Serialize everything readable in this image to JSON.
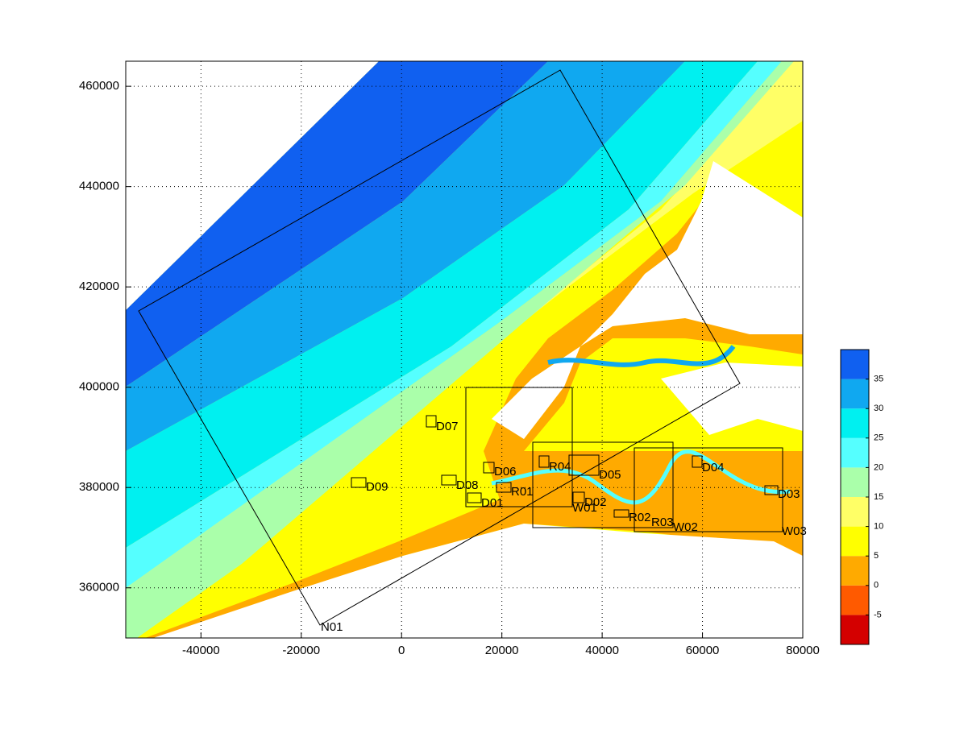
{
  "axes": {
    "xlim": [
      -55000,
      80000
    ],
    "ylim": [
      350000,
      465000
    ],
    "xticks": [
      -40000,
      -20000,
      0,
      20000,
      40000,
      60000,
      80000
    ],
    "yticks": [
      360000,
      380000,
      400000,
      420000,
      440000,
      460000
    ],
    "grid": true
  },
  "colorbar": {
    "lim": [
      -10,
      40
    ],
    "ticks": [
      -5,
      0,
      5,
      10,
      15,
      20,
      25,
      30,
      35
    ],
    "edges": [
      -10,
      -5,
      0,
      5,
      10,
      15,
      20,
      25,
      30,
      35,
      40
    ],
    "colors": [
      "#d40000",
      "#ff5a00",
      "#ffaa00",
      "#ffff00",
      "#ffff66",
      "#aaffaa",
      "#55ffff",
      "#00f0f0",
      "#10a8f0",
      "#1060f0"
    ]
  },
  "domains": [
    "N01"
  ],
  "stations": [
    "D07",
    "D06",
    "D08",
    "D09",
    "R01",
    "D01",
    "R04",
    "D05",
    "D02",
    "W01",
    "R02",
    "R03",
    "W02",
    "D04",
    "D03",
    "W03"
  ]
}
